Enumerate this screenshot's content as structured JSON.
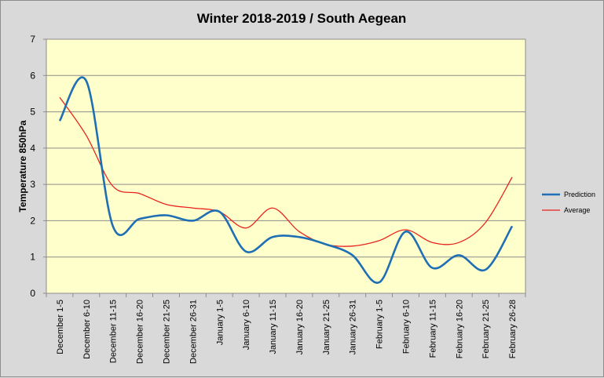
{
  "chart_data": {
    "type": "line",
    "title": "Winter 2018-2019 / South Aegean",
    "xlabel": "",
    "ylabel": "Temperature 850hPa",
    "ylim": [
      0,
      7
    ],
    "yticks": [
      "0",
      "1",
      "2",
      "3",
      "4",
      "5",
      "6",
      "7"
    ],
    "grid": true,
    "legend_position": "right",
    "categories": [
      "December 1-5",
      "December 6-10",
      "December 11-15",
      "December 16-20",
      "December 21-25",
      "December 26-31",
      "January 1-5",
      "January 6-10",
      "January 11-15",
      "January 16-20",
      "January 21-25",
      "January 26-31",
      "February 1-5",
      "February 6-10",
      "February 11-15",
      "February 16-20",
      "February 21-25",
      "February 26-28"
    ],
    "series": [
      {
        "name": "Prediction",
        "color": "#1f6fb4",
        "values": [
          4.75,
          5.85,
          1.85,
          2.05,
          2.15,
          2.0,
          2.25,
          1.15,
          1.55,
          1.55,
          1.35,
          1.05,
          0.3,
          1.7,
          0.7,
          1.05,
          0.65,
          1.85
        ]
      },
      {
        "name": "Average",
        "color": "#e8231f",
        "values": [
          5.4,
          4.35,
          2.95,
          2.75,
          2.45,
          2.35,
          2.25,
          1.8,
          2.35,
          1.7,
          1.35,
          1.3,
          1.45,
          1.75,
          1.4,
          1.4,
          1.95,
          3.2
        ]
      }
    ],
    "colors": {
      "background": "#d9d9d9",
      "plot_area": "#ffffcc",
      "grid": "#8c8c8c"
    }
  }
}
